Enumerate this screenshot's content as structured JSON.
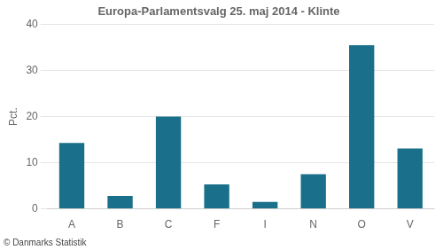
{
  "chart_data": {
    "type": "bar",
    "title": "Europa-Parlamentsvalg 25. maj 2014 - Klinte",
    "y_label": "Pct.",
    "footer": "© Danmarks Statistik",
    "categories": [
      "A",
      "B",
      "C",
      "F",
      "I",
      "N",
      "O",
      "V"
    ],
    "values": [
      14.3,
      2.8,
      20.0,
      5.3,
      1.5,
      7.5,
      35.5,
      13.1
    ],
    "color": "#1a6f8a",
    "ylim": [
      0,
      40
    ],
    "yticks": [
      0,
      10,
      20,
      30,
      40
    ],
    "grid": true
  }
}
